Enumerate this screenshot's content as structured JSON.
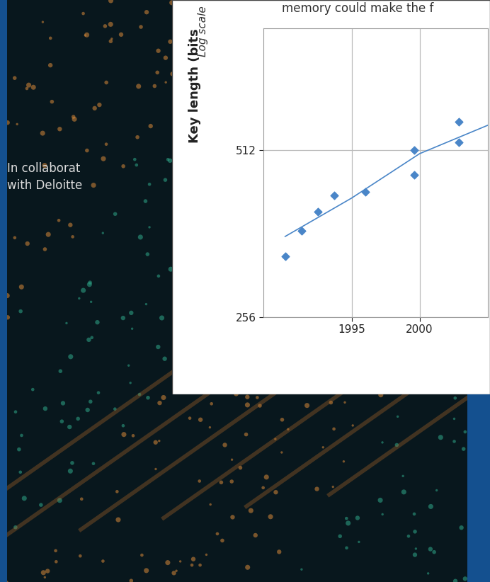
{
  "chart_data": {
    "type": "scatter",
    "title": "memory could make the f",
    "y_label": "Key length (bits",
    "annotations": [
      "Log scale",
      "In collaborat\nwith Deloitte"
    ],
    "log": "y",
    "grid": true,
    "xlim": [
      1988.5,
      2005.0
    ],
    "xticks": [
      1995,
      2000
    ],
    "ylim": [
      256,
      850
    ],
    "yticks": [
      256,
      512
    ],
    "series": [
      {
        "type": "scatter",
        "color": "#4a86c8",
        "marker": "D",
        "x": [
          1990.1,
          1991.3,
          1992.5,
          1993.7,
          1996.0,
          1999.6,
          1999.6,
          2002.9,
          2002.9
        ],
        "values": [
          330,
          366,
          397,
          425,
          431,
          512,
          462,
          576,
          530
        ]
      },
      {
        "type": "line",
        "color": "#4a86c8",
        "line_style": "solid",
        "x": [
          1990.1,
          1995.0,
          2000.0,
          2005.0
        ],
        "values": [
          358,
          420,
          505,
          568
        ]
      }
    ]
  }
}
